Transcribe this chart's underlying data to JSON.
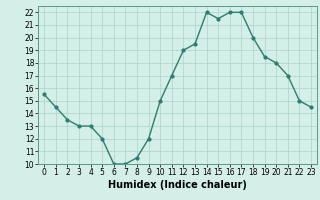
{
  "x": [
    0,
    1,
    2,
    3,
    4,
    5,
    6,
    7,
    8,
    9,
    10,
    11,
    12,
    13,
    14,
    15,
    16,
    17,
    18,
    19,
    20,
    21,
    22,
    23
  ],
  "y": [
    15.5,
    14.5,
    13.5,
    13.0,
    13.0,
    12.0,
    10.0,
    10.0,
    10.5,
    12.0,
    15.0,
    17.0,
    19.0,
    19.5,
    22.0,
    21.5,
    22.0,
    22.0,
    20.0,
    18.5,
    18.0,
    17.0,
    15.0,
    14.5
  ],
  "line_color": "#2e7d6e",
  "marker": "o",
  "marker_size": 2,
  "line_width": 1.0,
  "bg_color": "#d4eee8",
  "grid_color": "#aad4cc",
  "xlabel": "Humidex (Indice chaleur)",
  "xlim": [
    -0.5,
    23.5
  ],
  "ylim": [
    10,
    22.5
  ],
  "yticks": [
    10,
    11,
    12,
    13,
    14,
    15,
    16,
    17,
    18,
    19,
    20,
    21,
    22
  ],
  "xticks": [
    0,
    1,
    2,
    3,
    4,
    5,
    6,
    7,
    8,
    9,
    10,
    11,
    12,
    13,
    14,
    15,
    16,
    17,
    18,
    19,
    20,
    21,
    22,
    23
  ],
  "tick_fontsize": 5.5,
  "xlabel_fontsize": 7.0,
  "xlabel_fontweight": "bold"
}
